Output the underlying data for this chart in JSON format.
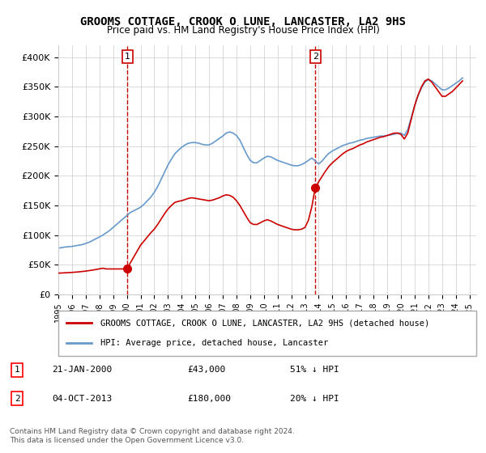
{
  "title": "GROOMS COTTAGE, CROOK O LUNE, LANCASTER, LA2 9HS",
  "subtitle": "Price paid vs. HM Land Registry's House Price Index (HPI)",
  "ylabel_ticks": [
    "£0",
    "£50K",
    "£100K",
    "£150K",
    "£200K",
    "£250K",
    "£300K",
    "£350K",
    "£400K"
  ],
  "ytick_values": [
    0,
    50000,
    100000,
    150000,
    200000,
    250000,
    300000,
    350000,
    400000
  ],
  "ylim": [
    0,
    420000
  ],
  "xlim_start": 1995.0,
  "xlim_end": 2025.5,
  "line_color_red": "#cc0000",
  "line_color_blue": "#6699cc",
  "marker_color": "#cc0000",
  "dashed_color": "#cc0000",
  "legend_label_red": "GROOMS COTTAGE, CROOK O LUNE, LANCASTER, LA2 9HS (detached house)",
  "legend_label_blue": "HPI: Average price, detached house, Lancaster",
  "sale1_label": "1",
  "sale1_date": "21-JAN-2000",
  "sale1_price": "£43,000",
  "sale1_hpi": "51% ↓ HPI",
  "sale1_x": 2000.05,
  "sale1_y": 43000,
  "sale2_label": "2",
  "sale2_date": "04-OCT-2013",
  "sale2_price": "£180,000",
  "sale2_hpi": "20% ↓ HPI",
  "sale2_x": 2013.75,
  "sale2_y": 180000,
  "footer": "Contains HM Land Registry data © Crown copyright and database right 2024.\nThis data is licensed under the Open Government Licence v3.0.",
  "hpi_data_x": [
    1995.0,
    1995.25,
    1995.5,
    1995.75,
    1996.0,
    1996.25,
    1996.5,
    1996.75,
    1997.0,
    1997.25,
    1997.5,
    1997.75,
    1998.0,
    1998.25,
    1998.5,
    1998.75,
    1999.0,
    1999.25,
    1999.5,
    1999.75,
    2000.0,
    2000.25,
    2000.5,
    2000.75,
    2001.0,
    2001.25,
    2001.5,
    2001.75,
    2002.0,
    2002.25,
    2002.5,
    2002.75,
    2003.0,
    2003.25,
    2003.5,
    2003.75,
    2004.0,
    2004.25,
    2004.5,
    2004.75,
    2005.0,
    2005.25,
    2005.5,
    2005.75,
    2006.0,
    2006.25,
    2006.5,
    2006.75,
    2007.0,
    2007.25,
    2007.5,
    2007.75,
    2008.0,
    2008.25,
    2008.5,
    2008.75,
    2009.0,
    2009.25,
    2009.5,
    2009.75,
    2010.0,
    2010.25,
    2010.5,
    2010.75,
    2011.0,
    2011.25,
    2011.5,
    2011.75,
    2012.0,
    2012.25,
    2012.5,
    2012.75,
    2013.0,
    2013.25,
    2013.5,
    2013.75,
    2014.0,
    2014.25,
    2014.5,
    2014.75,
    2015.0,
    2015.25,
    2015.5,
    2015.75,
    2016.0,
    2016.25,
    2016.5,
    2016.75,
    2017.0,
    2017.25,
    2017.5,
    2017.75,
    2018.0,
    2018.25,
    2018.5,
    2018.75,
    2019.0,
    2019.25,
    2019.5,
    2019.75,
    2020.0,
    2020.25,
    2020.5,
    2020.75,
    2021.0,
    2021.25,
    2021.5,
    2021.75,
    2022.0,
    2022.25,
    2022.5,
    2022.75,
    2023.0,
    2023.25,
    2023.5,
    2023.75,
    2024.0,
    2024.25,
    2024.5
  ],
  "hpi_data_y": [
    78000,
    79000,
    80000,
    80500,
    81000,
    82000,
    83000,
    84000,
    86000,
    88000,
    91000,
    94000,
    97000,
    100000,
    104000,
    108000,
    113000,
    118000,
    123000,
    128000,
    133000,
    138000,
    141000,
    144000,
    147000,
    152000,
    158000,
    164000,
    172000,
    182000,
    194000,
    206000,
    218000,
    228000,
    237000,
    243000,
    248000,
    252000,
    255000,
    256000,
    256000,
    255000,
    253000,
    252000,
    252000,
    255000,
    259000,
    263000,
    267000,
    272000,
    274000,
    272000,
    268000,
    260000,
    248000,
    236000,
    226000,
    222000,
    222000,
    226000,
    230000,
    233000,
    232000,
    229000,
    226000,
    224000,
    222000,
    220000,
    218000,
    217000,
    217000,
    219000,
    222000,
    226000,
    230000,
    225000,
    220000,
    225000,
    232000,
    238000,
    242000,
    245000,
    248000,
    251000,
    253000,
    255000,
    256000,
    258000,
    260000,
    261000,
    263000,
    264000,
    265000,
    266000,
    267000,
    267000,
    268000,
    269000,
    270000,
    272000,
    272000,
    268000,
    278000,
    298000,
    318000,
    335000,
    348000,
    358000,
    362000,
    360000,
    355000,
    350000,
    345000,
    345000,
    348000,
    352000,
    356000,
    360000,
    365000
  ],
  "price_data_x": [
    1995.0,
    1995.25,
    1995.5,
    1995.75,
    1996.0,
    1996.25,
    1996.5,
    1996.75,
    1997.0,
    1997.25,
    1997.5,
    1997.75,
    1998.0,
    1998.25,
    1998.5,
    1998.75,
    1999.0,
    1999.25,
    1999.5,
    1999.75,
    2000.0,
    2000.25,
    2000.5,
    2000.75,
    2001.0,
    2001.25,
    2001.5,
    2001.75,
    2002.0,
    2002.25,
    2002.5,
    2002.75,
    2003.0,
    2003.25,
    2003.5,
    2003.75,
    2004.0,
    2004.25,
    2004.5,
    2004.75,
    2005.0,
    2005.25,
    2005.5,
    2005.75,
    2006.0,
    2006.25,
    2006.5,
    2006.75,
    2007.0,
    2007.25,
    2007.5,
    2007.75,
    2008.0,
    2008.25,
    2008.5,
    2008.75,
    2009.0,
    2009.25,
    2009.5,
    2009.75,
    2010.0,
    2010.25,
    2010.5,
    2010.75,
    2011.0,
    2011.25,
    2011.5,
    2011.75,
    2012.0,
    2012.25,
    2012.5,
    2012.75,
    2013.0,
    2013.25,
    2013.5,
    2013.75,
    2014.0,
    2014.25,
    2014.5,
    2014.75,
    2015.0,
    2015.25,
    2015.5,
    2015.75,
    2016.0,
    2016.25,
    2016.5,
    2016.75,
    2017.0,
    2017.25,
    2017.5,
    2017.75,
    2018.0,
    2018.25,
    2018.5,
    2018.75,
    2019.0,
    2019.25,
    2019.5,
    2019.75,
    2020.0,
    2020.25,
    2020.5,
    2020.75,
    2021.0,
    2021.25,
    2021.5,
    2021.75,
    2022.0,
    2022.25,
    2022.5,
    2022.75,
    2023.0,
    2023.25,
    2023.5,
    2023.75,
    2024.0,
    2024.25,
    2024.5
  ],
  "price_data_y": [
    36000,
    36200,
    36500,
    36800,
    37200,
    37600,
    38100,
    38700,
    39400,
    40200,
    41100,
    42100,
    43200,
    44200,
    43000,
    43000,
    43000,
    43000,
    43000,
    43000,
    43000,
    53000,
    63000,
    73000,
    83000,
    90000,
    97000,
    104000,
    110000,
    118000,
    127000,
    136000,
    144000,
    150000,
    155000,
    157000,
    158000,
    160000,
    162000,
    163000,
    162000,
    161000,
    160000,
    159000,
    158000,
    159000,
    161000,
    163000,
    166000,
    168000,
    167000,
    164000,
    158000,
    150000,
    140000,
    130000,
    121000,
    118000,
    118000,
    121000,
    124000,
    126000,
    124000,
    121000,
    118000,
    116000,
    114000,
    112000,
    110000,
    109000,
    109000,
    110000,
    113000,
    125000,
    148000,
    180000,
    190000,
    199000,
    208000,
    216000,
    222000,
    227000,
    232000,
    237000,
    241000,
    244000,
    246000,
    249000,
    252000,
    254000,
    257000,
    259000,
    261000,
    263000,
    265000,
    266000,
    268000,
    270000,
    272000,
    272000,
    270000,
    262000,
    272000,
    295000,
    318000,
    336000,
    350000,
    360000,
    363000,
    358000,
    350000,
    342000,
    334000,
    334000,
    338000,
    342000,
    348000,
    354000,
    360000
  ]
}
